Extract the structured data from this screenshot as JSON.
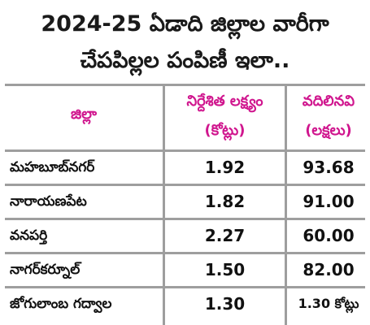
{
  "header": {
    "title_line1": "2024-25 ఏడాది జిల్లాల వారీగా",
    "title_line2": "చేపపిల్లల పంపిణీ ఇలా.."
  },
  "table": {
    "columns": {
      "district": "జిల్లా",
      "target": "నిర్దేశిత లక్ష్యం",
      "target_unit": "(కోట్లు)",
      "released": "వదిలినవి",
      "released_unit": "(లక్షలు)"
    },
    "rows": [
      {
        "district": "మహబూబ్‌నగర్",
        "target": "1.92",
        "released": "93.68"
      },
      {
        "district": "నారాయణపేట",
        "target": "1.82",
        "released": "91.00"
      },
      {
        "district": "వనపర్తి",
        "target": "2.27",
        "released": "60.00"
      },
      {
        "district": "నాగర్‌కర్నూల్",
        "target": "1.50",
        "released": "82.00"
      },
      {
        "district": "జోగులాంబ గద్వాల",
        "target": "1.30",
        "released": "1.30 కోట్లు"
      }
    ]
  },
  "colors": {
    "header_text": "#d0168e",
    "grid_lines": "#9e9e9e",
    "body_text": "#111111"
  }
}
